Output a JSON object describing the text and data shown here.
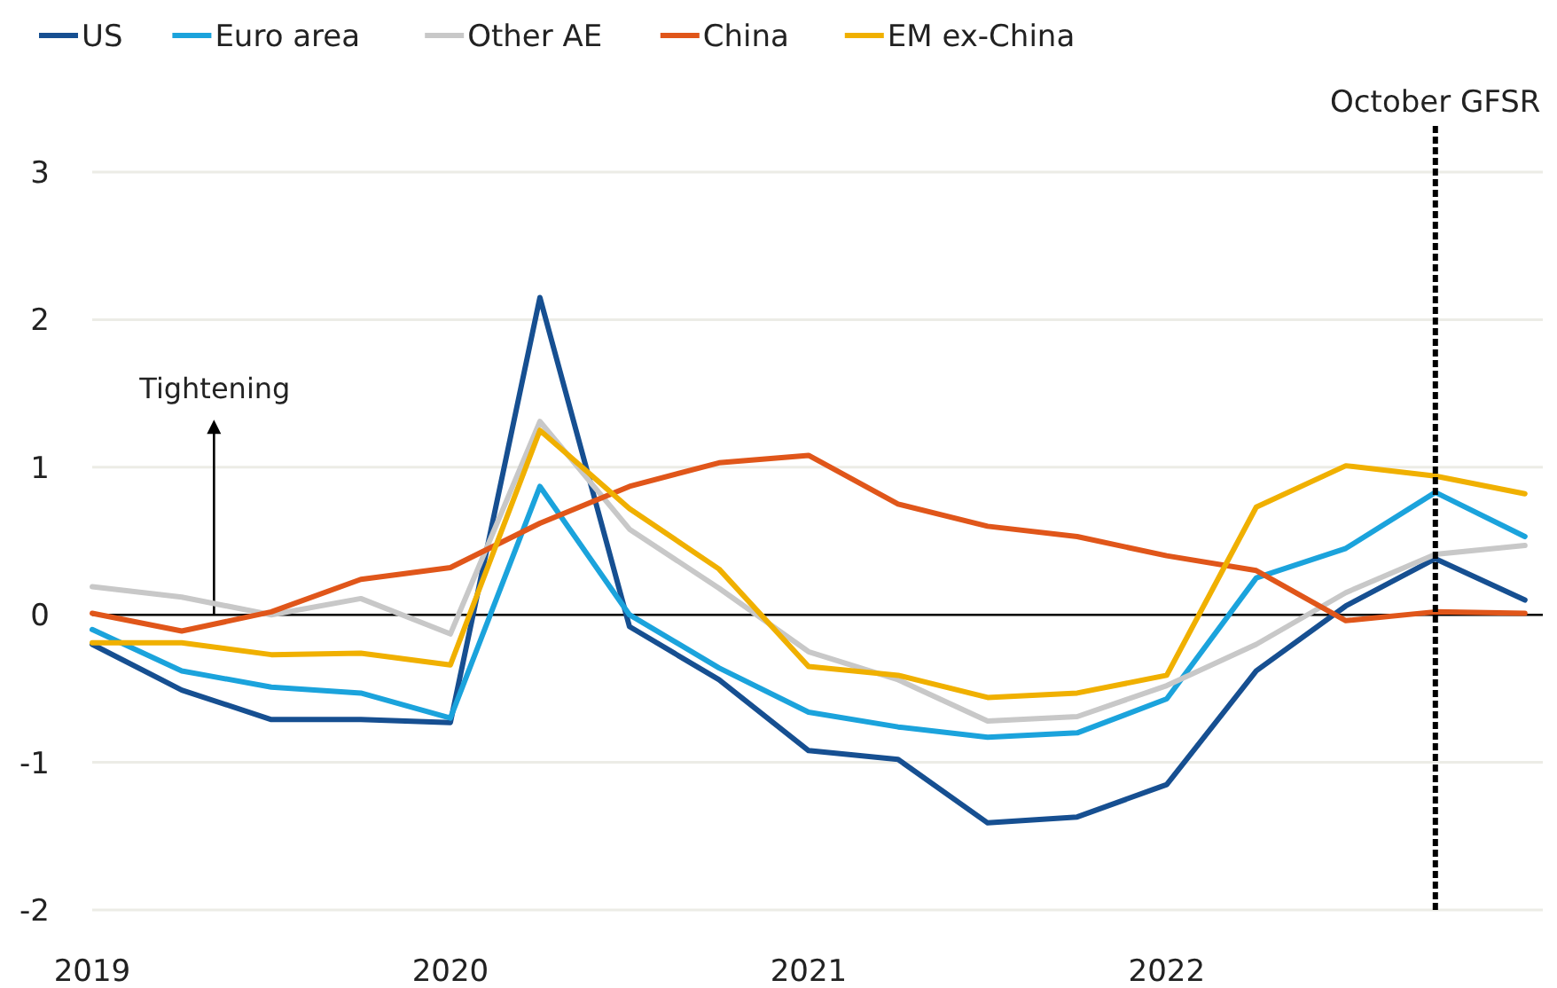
{
  "chart_data": {
    "type": "line",
    "x": [
      2019,
      2019.25,
      2019.5,
      2019.75,
      2020,
      2020.25,
      2020.5,
      2020.75,
      2021,
      2021.25,
      2021.5,
      2021.75,
      2022,
      2022.25,
      2022.5,
      2022.75,
      2023
    ],
    "series": [
      {
        "name": "US",
        "color": "#164f91",
        "values": [
          -0.2,
          -0.51,
          -0.71,
          -0.71,
          -0.73,
          2.15,
          -0.08,
          -0.44,
          -0.92,
          -0.98,
          -1.41,
          -1.37,
          -1.15,
          -0.38,
          0.06,
          0.38,
          0.1
        ]
      },
      {
        "name": "Euro area",
        "color": "#1ba3dc",
        "values": [
          -0.1,
          -0.38,
          -0.49,
          -0.53,
          -0.7,
          0.87,
          0.0,
          -0.36,
          -0.66,
          -0.76,
          -0.83,
          -0.8,
          -0.57,
          0.25,
          0.45,
          0.83,
          0.53
        ]
      },
      {
        "name": "Other AE",
        "color": "#c8c8c8",
        "values": [
          0.19,
          0.12,
          0.0,
          0.11,
          -0.13,
          1.31,
          0.58,
          0.18,
          -0.25,
          -0.44,
          -0.72,
          -0.69,
          -0.48,
          -0.2,
          0.15,
          0.41,
          0.47
        ]
      },
      {
        "name": "China",
        "color": "#e0561a",
        "values": [
          0.01,
          -0.11,
          0.02,
          0.24,
          0.32,
          0.62,
          0.87,
          1.03,
          1.08,
          0.75,
          0.6,
          0.53,
          0.4,
          0.3,
          -0.04,
          0.02,
          0.01
        ]
      },
      {
        "name": "EM ex-China",
        "color": "#f0b000",
        "values": [
          -0.19,
          -0.19,
          -0.27,
          -0.26,
          -0.34,
          1.25,
          0.72,
          0.31,
          -0.35,
          -0.41,
          -0.56,
          -0.53,
          -0.41,
          0.73,
          1.01,
          0.94,
          0.82
        ]
      }
    ],
    "xlim": [
      2019,
      2023.05
    ],
    "xticks": [
      2019,
      2020,
      2021,
      2022
    ],
    "ylim": [
      -2,
      3
    ],
    "yticks": [
      -2,
      -1,
      0,
      1,
      2,
      3
    ],
    "grid": "y",
    "legend": "top left",
    "line_style": "solid",
    "marker": "none",
    "ref_lines": [
      {
        "axis": "x",
        "value": 2022.75,
        "label": "October GFSR",
        "color": "#000000",
        "line_style": "dashed"
      },
      {
        "axis": "y",
        "value": 0,
        "color": "#000000",
        "line_style": "solid"
      }
    ],
    "annotations": [
      {
        "text": "Tightening",
        "x": 2019.34,
        "y": 0
      }
    ]
  }
}
